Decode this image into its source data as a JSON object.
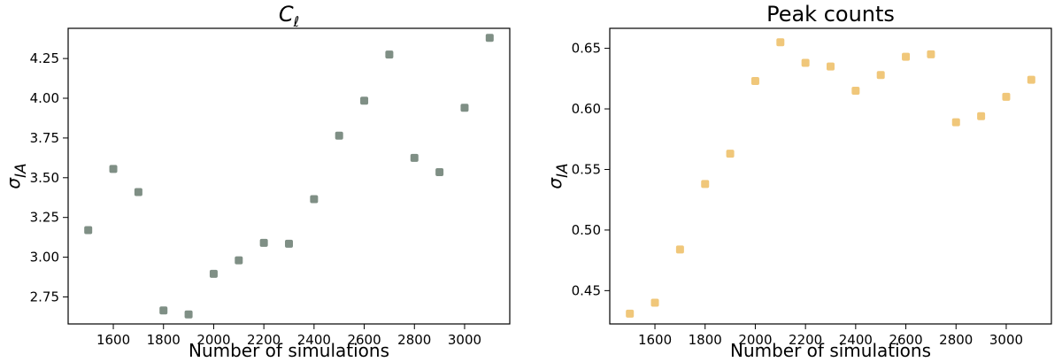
{
  "chart_data": [
    {
      "type": "scatter",
      "title": "C",
      "title_subscript": "ℓ",
      "xlabel": "Number of simulations",
      "ylabel": "σ",
      "ylabel_subscript": "IA",
      "color": "#7f8f85",
      "xlim": [
        1420,
        3180
      ],
      "ylim": [
        2.58,
        4.44
      ],
      "x_ticks": [
        1600,
        1800,
        2000,
        2200,
        2400,
        2600,
        2800,
        3000
      ],
      "y_ticks": [
        2.75,
        3.0,
        3.25,
        3.5,
        3.75,
        4.0,
        4.25
      ],
      "y_tick_labels": [
        "2.75",
        "3.00",
        "3.25",
        "3.50",
        "3.75",
        "4.00",
        "4.25"
      ],
      "x": [
        1500,
        1600,
        1700,
        1800,
        1900,
        2000,
        2100,
        2200,
        2300,
        2400,
        2500,
        2600,
        2700,
        2800,
        2900,
        3000,
        3100
      ],
      "y": [
        3.17,
        3.555,
        3.41,
        2.665,
        2.64,
        2.895,
        2.98,
        3.09,
        3.085,
        3.365,
        3.765,
        3.985,
        4.275,
        3.625,
        3.535,
        3.94,
        4.38
      ],
      "grid": false
    },
    {
      "type": "scatter",
      "title": "Peak counts",
      "title_subscript": "",
      "xlabel": "Number of simulations",
      "ylabel": "σ",
      "ylabel_subscript": "IA",
      "color": "#f0c77a",
      "xlim": [
        1420,
        3180
      ],
      "ylim": [
        0.4225,
        0.6665
      ],
      "x_ticks": [
        1600,
        1800,
        2000,
        2200,
        2400,
        2600,
        2800,
        3000
      ],
      "y_ticks": [
        0.45,
        0.5,
        0.55,
        0.6,
        0.65
      ],
      "y_tick_labels": [
        "0.45",
        "0.50",
        "0.55",
        "0.60",
        "0.65"
      ],
      "x": [
        1500,
        1600,
        1700,
        1800,
        1900,
        2000,
        2100,
        2200,
        2300,
        2400,
        2500,
        2600,
        2700,
        2800,
        2900,
        3000,
        3100
      ],
      "y": [
        0.431,
        0.44,
        0.484,
        0.538,
        0.563,
        0.623,
        0.655,
        0.638,
        0.635,
        0.615,
        0.628,
        0.643,
        0.645,
        0.589,
        0.594,
        0.61,
        0.624
      ],
      "grid": false
    }
  ]
}
